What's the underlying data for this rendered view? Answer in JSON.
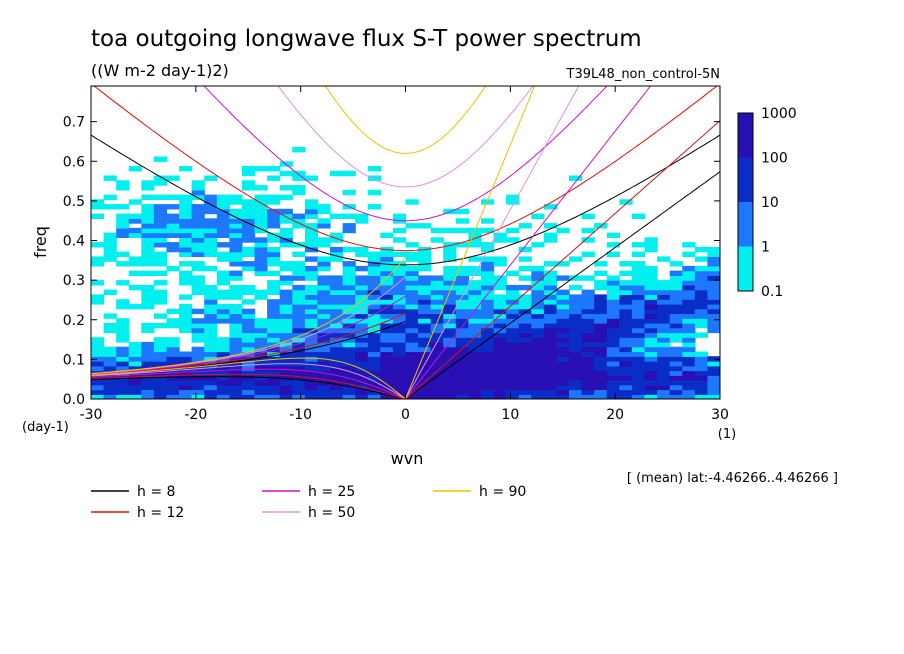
{
  "chart_data": {
    "type": "heatmap",
    "title": "toa outgoing longwave flux S-T power spectrum",
    "subtitle": "((W m-2 day-1)2)",
    "run_label": "T39L48_non_control-5N",
    "xlabel": "wvn",
    "ylabel": "freq",
    "x_unit_label": "(1)",
    "y_unit_label": "(day-1)",
    "xlim": [
      -30,
      30
    ],
    "ylim": [
      0,
      0.79
    ],
    "x_ticks": [
      "-30",
      "-20",
      "-10",
      "0",
      "10",
      "20",
      "30"
    ],
    "y_ticks": [
      "0.0",
      "0.1",
      "0.2",
      "0.3",
      "0.4",
      "0.5",
      "0.6",
      "0.7"
    ],
    "colorbar": {
      "levels": [
        "0.1",
        "1",
        "10",
        "100",
        "1000"
      ],
      "colors": [
        "#00f0f0",
        "#1e78ff",
        "#0a2dc8",
        "#2810b4",
        "#4a10a0"
      ]
    },
    "note": "[ (mean) lat:-4.46266..4.46266 ]",
    "dispersion_curves": [
      {
        "h": 8,
        "label": "h =  8",
        "color": "#000000"
      },
      {
        "h": 12,
        "label": "h = 12",
        "color": "#e01010"
      },
      {
        "h": 25,
        "label": "h = 25",
        "color": "#d010c8"
      },
      {
        "h": 50,
        "label": "h = 50",
        "color": "#e090e0"
      },
      {
        "h": 90,
        "label": "h = 90",
        "color": "#f0c000"
      }
    ]
  }
}
